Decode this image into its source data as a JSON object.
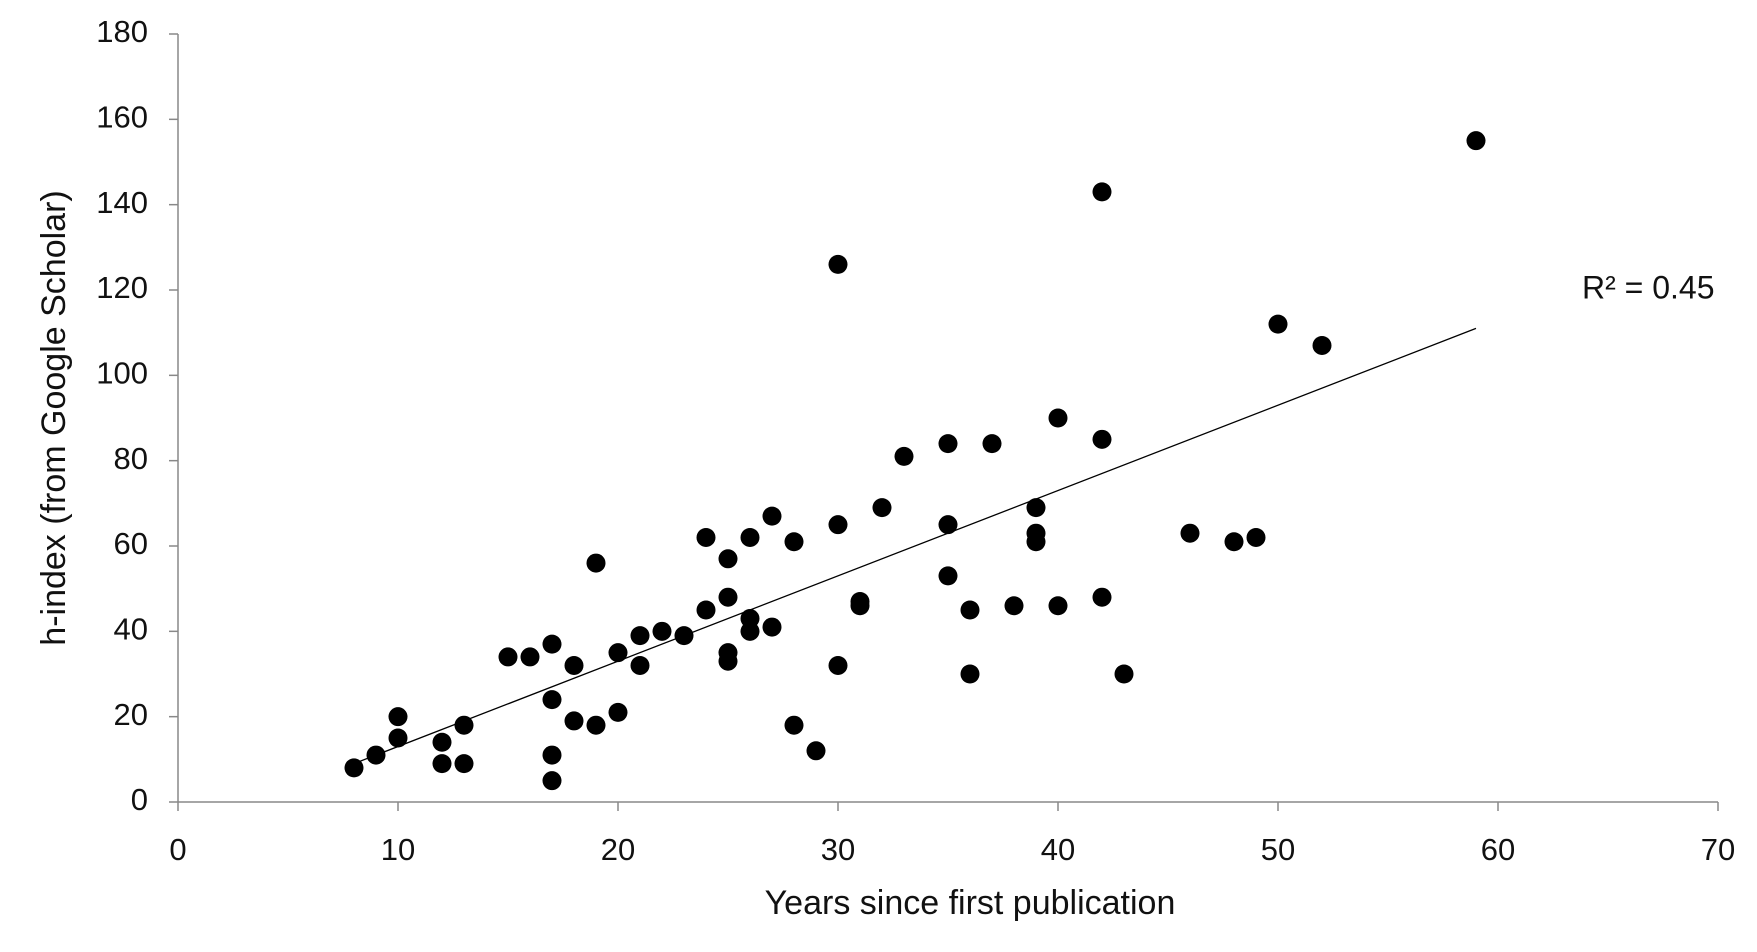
{
  "chart_data": {
    "type": "scatter",
    "x_label": "Years since first publication",
    "y_label": "h-index (from Google Scholar)",
    "annotation": "R² = 0.45",
    "color": "#000000",
    "xlim": [
      0,
      70
    ],
    "xticks": [
      0,
      10,
      20,
      30,
      40,
      50,
      60,
      70
    ],
    "ylim": [
      0,
      180
    ],
    "yticks": [
      0,
      20,
      40,
      60,
      80,
      100,
      120,
      140,
      160,
      180
    ],
    "grid": false,
    "x": [
      8,
      9,
      10,
      10,
      12,
      12,
      13,
      13,
      15,
      16,
      17,
      17,
      17,
      17,
      18,
      18,
      19,
      19,
      20,
      20,
      21,
      21,
      22,
      23,
      24,
      24,
      25,
      25,
      25,
      25,
      26,
      26,
      26,
      27,
      27,
      28,
      28,
      29,
      30,
      30,
      30,
      31,
      31,
      32,
      33,
      35,
      35,
      35,
      36,
      36,
      37,
      38,
      39,
      39,
      39,
      40,
      40,
      42,
      42,
      42,
      43,
      46,
      48,
      49,
      50,
      52,
      59
    ],
    "values": [
      8,
      11,
      20,
      15,
      14,
      9,
      18,
      9,
      34,
      34,
      37,
      24,
      11,
      5,
      32,
      19,
      56,
      18,
      35,
      21,
      39,
      32,
      40,
      39,
      62,
      45,
      57,
      48,
      35,
      33,
      62,
      43,
      40,
      67,
      41,
      61,
      18,
      12,
      126,
      65,
      32,
      47,
      46,
      69,
      81,
      84,
      65,
      53,
      45,
      30,
      84,
      46,
      69,
      63,
      61,
      90,
      46,
      143,
      85,
      48,
      30,
      63,
      61,
      62,
      112,
      107,
      155
    ],
    "trendline": {
      "x": [
        8,
        59
      ],
      "values": [
        9,
        111
      ]
    }
  }
}
